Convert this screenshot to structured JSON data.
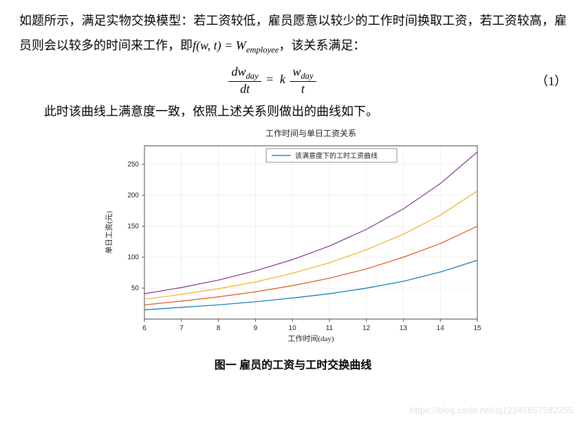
{
  "paragraph1_a": "如题所示，满足实物交换模型：若工资较低，雇员愿意以较少的工作时间换取工资，若工资较高，雇员则会以较多的时间来工作，即",
  "fwt": "f(w, t) = W",
  "fwt_sub": "employee",
  "paragraph1_b": "，该关系满足：",
  "equation": {
    "lhs_num_d": "d",
    "lhs_num_var": "w",
    "lhs_num_sub": "day",
    "lhs_den_d": "d",
    "lhs_den_var": "t",
    "eq": " = ",
    "k": "k",
    "rhs_num_var": "w",
    "rhs_num_sub": "day",
    "rhs_den_var": "t",
    "number": "（1）"
  },
  "paragraph2": "此时该曲线上满意度一致，依照上述关系则做出的曲线如下。",
  "caption": "图一 雇员的工资与工时交换曲线",
  "watermark": "https://blog.csdn.net/cj12345657582255",
  "chart": {
    "type": "line",
    "title": "工作时间与单日工资关系",
    "title_fontsize": 12,
    "xlabel": "工作时间(day)",
    "ylabel": "单日工资(元)",
    "label_fontsize": 11,
    "xlim": [
      6,
      15
    ],
    "ylim": [
      0,
      280
    ],
    "xticks": [
      6,
      7,
      8,
      9,
      10,
      11,
      12,
      13,
      14,
      15
    ],
    "yticks": [
      50,
      100,
      150,
      200,
      250
    ],
    "background_color": "#ffffff",
    "grid_color": "#ececec",
    "axis_color": "#404040",
    "tick_fontsize": 10,
    "legend": {
      "label": "该满意度下的工时工资曲线",
      "position": "top-center",
      "line_color": "#0072bd",
      "border_color": "#606060",
      "fontsize": 10
    },
    "line_width": 1.2,
    "series": [
      {
        "color": "#0072bd",
        "points": [
          {
            "x": 6,
            "y": 15
          },
          {
            "x": 7,
            "y": 19
          },
          {
            "x": 8,
            "y": 23
          },
          {
            "x": 9,
            "y": 28
          },
          {
            "x": 10,
            "y": 34
          },
          {
            "x": 11,
            "y": 41
          },
          {
            "x": 12,
            "y": 50
          },
          {
            "x": 13,
            "y": 61
          },
          {
            "x": 14,
            "y": 76
          },
          {
            "x": 15,
            "y": 95
          }
        ]
      },
      {
        "color": "#d95319",
        "points": [
          {
            "x": 6,
            "y": 23
          },
          {
            "x": 7,
            "y": 29
          },
          {
            "x": 8,
            "y": 36
          },
          {
            "x": 9,
            "y": 44
          },
          {
            "x": 10,
            "y": 54
          },
          {
            "x": 11,
            "y": 66
          },
          {
            "x": 12,
            "y": 81
          },
          {
            "x": 13,
            "y": 100
          },
          {
            "x": 14,
            "y": 122
          },
          {
            "x": 15,
            "y": 150
          }
        ]
      },
      {
        "color": "#edb120",
        "points": [
          {
            "x": 6,
            "y": 32
          },
          {
            "x": 7,
            "y": 40
          },
          {
            "x": 8,
            "y": 49
          },
          {
            "x": 9,
            "y": 60
          },
          {
            "x": 10,
            "y": 74
          },
          {
            "x": 11,
            "y": 91
          },
          {
            "x": 12,
            "y": 112
          },
          {
            "x": 13,
            "y": 137
          },
          {
            "x": 14,
            "y": 168
          },
          {
            "x": 15,
            "y": 207
          }
        ]
      },
      {
        "color": "#7e2f8e",
        "points": [
          {
            "x": 6,
            "y": 41
          },
          {
            "x": 7,
            "y": 51
          },
          {
            "x": 8,
            "y": 63
          },
          {
            "x": 9,
            "y": 78
          },
          {
            "x": 10,
            "y": 96
          },
          {
            "x": 11,
            "y": 118
          },
          {
            "x": 12,
            "y": 145
          },
          {
            "x": 13,
            "y": 178
          },
          {
            "x": 14,
            "y": 219
          },
          {
            "x": 15,
            "y": 270
          }
        ]
      }
    ]
  }
}
